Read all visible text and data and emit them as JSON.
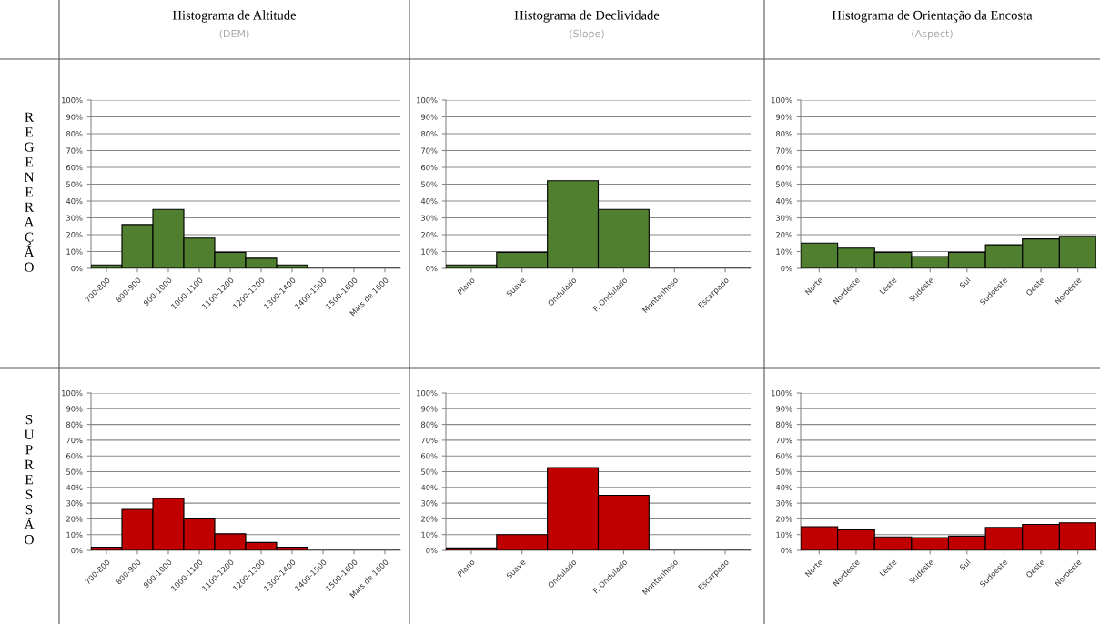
{
  "chart_data": [
    {
      "type": "bar",
      "title": "Histograma de Altitude",
      "subtitle": "(DEM)",
      "annotations": [
        "REGENERAÇÃO"
      ],
      "categories": [
        "700-800",
        "800-900",
        "900-1000",
        "1000-1100",
        "1100-1200",
        "1200-1300",
        "1300-1400",
        "1400-1500",
        "1500-1600",
        "Mais de 1600"
      ],
      "values": [
        2,
        26,
        35,
        18,
        9.5,
        6,
        2,
        0,
        0,
        0
      ],
      "color": "#4f7f2f",
      "ylim": [
        0,
        100
      ],
      "yticks": [
        {
          "value": 0,
          "label": "0%"
        },
        {
          "value": 10,
          "label": "10%"
        },
        {
          "value": 20,
          "label": "20%"
        },
        {
          "value": 30,
          "label": "30%"
        },
        {
          "value": 40,
          "label": "40%"
        },
        {
          "value": 50,
          "label": "50%"
        },
        {
          "value": 60,
          "label": "60%"
        },
        {
          "value": 70,
          "label": "70%"
        },
        {
          "value": 80,
          "label": "80%"
        },
        {
          "value": 90,
          "label": "90%"
        },
        {
          "value": 100,
          "label": "100%"
        }
      ],
      "grid": "y"
    },
    {
      "type": "bar",
      "title": "Histograma de Declividade",
      "subtitle": "(Slope)",
      "categories": [
        "Plano",
        "Suave",
        "Ondulado",
        "F. Ondulado",
        "Montanhoso",
        "Escarpado"
      ],
      "values": [
        2,
        9.5,
        52,
        35,
        0,
        0
      ],
      "color": "#4f7f2f",
      "ylim": [
        0,
        100
      ],
      "yticks": [
        {
          "value": 0,
          "label": "0%"
        },
        {
          "value": 10,
          "label": "10%"
        },
        {
          "value": 20,
          "label": "20%"
        },
        {
          "value": 30,
          "label": "30%"
        },
        {
          "value": 40,
          "label": "40%"
        },
        {
          "value": 50,
          "label": "50%"
        },
        {
          "value": 60,
          "label": "60%"
        },
        {
          "value": 70,
          "label": "70%"
        },
        {
          "value": 80,
          "label": "80%"
        },
        {
          "value": 90,
          "label": "90%"
        },
        {
          "value": 100,
          "label": "100%"
        }
      ],
      "grid": "y"
    },
    {
      "type": "bar",
      "title": "Histograma de Orientação da Encosta",
      "subtitle": "(Aspect)",
      "categories": [
        "Norte",
        "Nordeste",
        "Leste",
        "Sudeste",
        "Sul",
        "Sudoeste",
        "Oeste",
        "Noroeste"
      ],
      "values": [
        15,
        12,
        9.5,
        7,
        9.5,
        14,
        17.5,
        19
      ],
      "color": "#4f7f2f",
      "ylim": [
        0,
        100
      ],
      "yticks": [
        {
          "value": 0,
          "label": "0%"
        },
        {
          "value": 10,
          "label": "10%"
        },
        {
          "value": 20,
          "label": "20%"
        },
        {
          "value": 30,
          "label": "30%"
        },
        {
          "value": 40,
          "label": "40%"
        },
        {
          "value": 50,
          "label": "50%"
        },
        {
          "value": 60,
          "label": "60%"
        },
        {
          "value": 70,
          "label": "70%"
        },
        {
          "value": 80,
          "label": "80%"
        },
        {
          "value": 90,
          "label": "90%"
        },
        {
          "value": 100,
          "label": "100%"
        }
      ],
      "grid": "y"
    },
    {
      "type": "bar",
      "annotations": [
        "SUPRESSÃO"
      ],
      "categories": [
        "700-800",
        "800-900",
        "900-1000",
        "1000-1100",
        "1100-1200",
        "1200-1300",
        "1300-1400",
        "1400-1500",
        "1500-1600",
        "Mais de 1600"
      ],
      "values": [
        2,
        26,
        33,
        20,
        10.5,
        5,
        2,
        0,
        0,
        0
      ],
      "color": "#c00000",
      "ylim": [
        0,
        100
      ],
      "yticks": [
        {
          "value": 0,
          "label": "0%"
        },
        {
          "value": 10,
          "label": "10%"
        },
        {
          "value": 20,
          "label": "20%"
        },
        {
          "value": 30,
          "label": "30%"
        },
        {
          "value": 40,
          "label": "40%"
        },
        {
          "value": 50,
          "label": "50%"
        },
        {
          "value": 60,
          "label": "60%"
        },
        {
          "value": 70,
          "label": "70%"
        },
        {
          "value": 80,
          "label": "80%"
        },
        {
          "value": 90,
          "label": "90%"
        },
        {
          "value": 100,
          "label": "100%"
        }
      ],
      "grid": "y"
    },
    {
      "type": "bar",
      "categories": [
        "Plano",
        "Suave",
        "Ondulado",
        "F. Ondulado",
        "Montanhoso",
        "Escarpado"
      ],
      "values": [
        1.5,
        10,
        52.5,
        35,
        0,
        0
      ],
      "color": "#c00000",
      "ylim": [
        0,
        100
      ],
      "yticks": [
        {
          "value": 0,
          "label": "0%"
        },
        {
          "value": 10,
          "label": "10%"
        },
        {
          "value": 20,
          "label": "20%"
        },
        {
          "value": 30,
          "label": "30%"
        },
        {
          "value": 40,
          "label": "40%"
        },
        {
          "value": 50,
          "label": "50%"
        },
        {
          "value": 60,
          "label": "60%"
        },
        {
          "value": 70,
          "label": "70%"
        },
        {
          "value": 80,
          "label": "80%"
        },
        {
          "value": 90,
          "label": "90%"
        },
        {
          "value": 100,
          "label": "100%"
        }
      ],
      "grid": "y"
    },
    {
      "type": "bar",
      "categories": [
        "Norte",
        "Nordeste",
        "Leste",
        "Sudeste",
        "Sul",
        "Sudoeste",
        "Oeste",
        "Noroeste"
      ],
      "values": [
        15,
        13,
        8.5,
        8,
        9,
        14.5,
        16.5,
        17.5
      ],
      "color": "#c00000",
      "ylim": [
        0,
        100
      ],
      "yticks": [
        {
          "value": 0,
          "label": "0%"
        },
        {
          "value": 10,
          "label": "10%"
        },
        {
          "value": 20,
          "label": "20%"
        },
        {
          "value": 30,
          "label": "30%"
        },
        {
          "value": 40,
          "label": "40%"
        },
        {
          "value": 50,
          "label": "50%"
        },
        {
          "value": 60,
          "label": "60%"
        },
        {
          "value": 70,
          "label": "70%"
        },
        {
          "value": 80,
          "label": "80%"
        },
        {
          "value": 90,
          "label": "90%"
        },
        {
          "value": 100,
          "label": "100%"
        }
      ],
      "grid": "y"
    }
  ]
}
